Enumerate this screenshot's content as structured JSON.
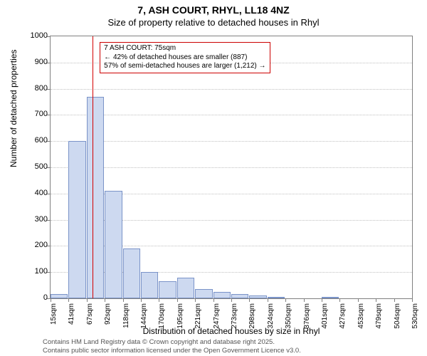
{
  "title": "7, ASH COURT, RHYL, LL18 4NZ",
  "subtitle": "Size of property relative to detached houses in Rhyl",
  "ylabel": "Number of detached properties",
  "xlabel": "Distribution of detached houses by size in Rhyl",
  "chart": {
    "type": "histogram",
    "ylim": [
      0,
      1000
    ],
    "ytick_step": 100,
    "background_color": "#ffffff",
    "grid_color": "#c0c0c0",
    "bar_fill": "#cdd9f0",
    "bar_border": "#7a93c8",
    "marker_color": "#d40000",
    "x_ticks": [
      "15sqm",
      "41sqm",
      "67sqm",
      "92sqm",
      "118sqm",
      "144sqm",
      "170sqm",
      "195sqm",
      "221sqm",
      "247sqm",
      "273sqm",
      "298sqm",
      "324sqm",
      "350sqm",
      "376sqm",
      "401sqm",
      "427sqm",
      "453sqm",
      "479sqm",
      "504sqm",
      "530sqm"
    ],
    "bar_values": [
      15,
      600,
      770,
      410,
      190,
      100,
      65,
      80,
      35,
      25,
      15,
      10,
      5,
      0,
      0,
      3,
      0,
      0,
      0,
      0
    ],
    "marker_x_value": 75
  },
  "annotation": {
    "line1": "7 ASH COURT: 75sqm",
    "line2": "← 42% of detached houses are smaller (887)",
    "line3": "57% of semi-detached houses are larger (1,212) →",
    "box_border": "#cc0000"
  },
  "footer": {
    "line1": "Contains HM Land Registry data © Crown copyright and database right 2025.",
    "line2": "Contains public sector information licensed under the Open Government Licence v3.0."
  },
  "fonts": {
    "title_size": 14,
    "subtitle_size": 13,
    "axis_label_size": 12,
    "tick_size": 11,
    "annot_size": 10,
    "footer_size": 9.5
  }
}
